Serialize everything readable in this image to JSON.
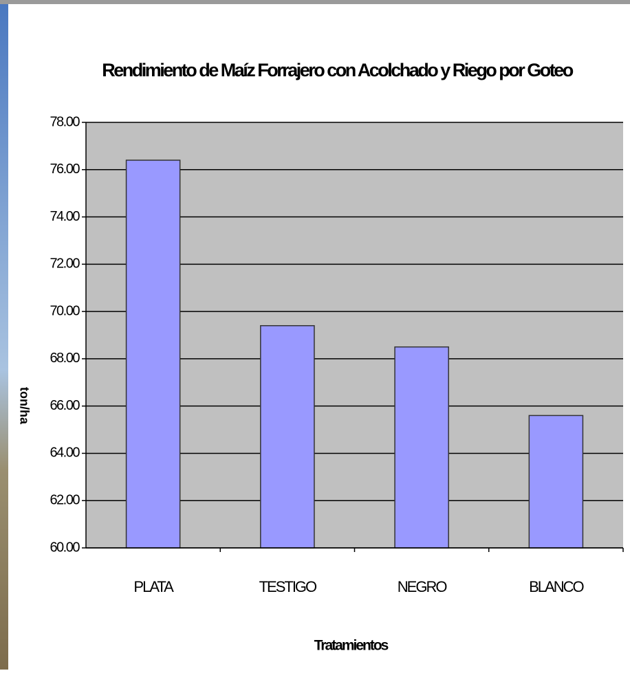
{
  "chart_data": {
    "type": "bar",
    "title": "Rendimiento de Maíz Forrajero  con Acolchado y  Riego por Goteo",
    "x_label": "Tratamientos",
    "y_label": "ton/ha",
    "categories": [
      "PLATA",
      "TESTIGO",
      "NEGRO",
      "BLANCO"
    ],
    "values": [
      76.4,
      69.4,
      68.5,
      65.6
    ],
    "color": "#9999ff",
    "ylim": [
      60,
      78
    ],
    "yticks": [
      {
        "value": 60,
        "label": "60.00"
      },
      {
        "value": 62,
        "label": "62.00"
      },
      {
        "value": 64,
        "label": "64.00"
      },
      {
        "value": 66,
        "label": "66.00"
      },
      {
        "value": 68,
        "label": "68.00"
      },
      {
        "value": 70,
        "label": "70.00"
      },
      {
        "value": 72,
        "label": "72.00"
      },
      {
        "value": 74,
        "label": "74.00"
      },
      {
        "value": 76,
        "label": "76.00"
      },
      {
        "value": 78,
        "label": "78.00"
      }
    ],
    "grid": true
  }
}
